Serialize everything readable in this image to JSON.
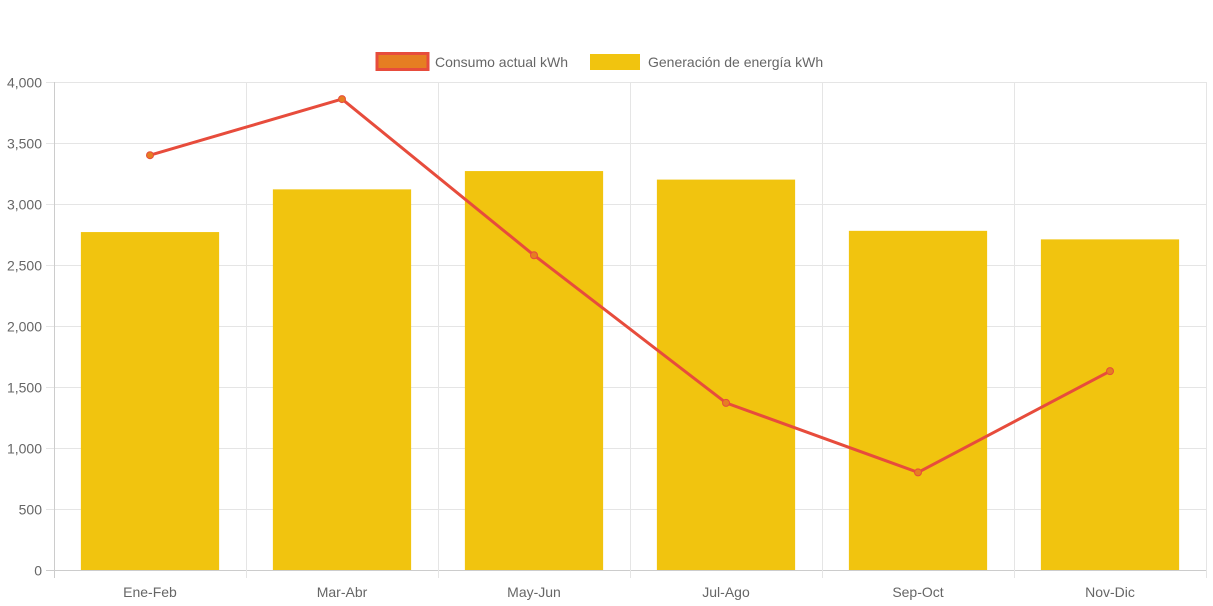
{
  "chart_data": {
    "type": "bar",
    "title": "",
    "xlabel": "",
    "ylabel": "",
    "categories": [
      "Ene-Feb",
      "Mar-Abr",
      "May-Jun",
      "Jul-Ago",
      "Sep-Oct",
      "Nov-Dic"
    ],
    "ylim": [
      0,
      4000
    ],
    "yticks": [
      0,
      500,
      1000,
      1500,
      2000,
      2500,
      3000,
      3500,
      4000
    ],
    "ytick_labels": [
      "0",
      "500",
      "1,000",
      "1,500",
      "2,000",
      "2,500",
      "3,000",
      "3,500",
      "4,000"
    ],
    "grid": true,
    "legend_position": "top-center",
    "series": [
      {
        "name": "Consumo actual kWh",
        "type": "line",
        "values": [
          3400,
          3860,
          2580,
          1370,
          800,
          1630
        ],
        "color": "#e74c3c",
        "point_color": "#e67e22"
      },
      {
        "name": "Generación de energía kWh",
        "type": "bar",
        "values": [
          2770,
          3120,
          3270,
          3200,
          2780,
          2710
        ],
        "color": "#f1c40f"
      }
    ]
  }
}
